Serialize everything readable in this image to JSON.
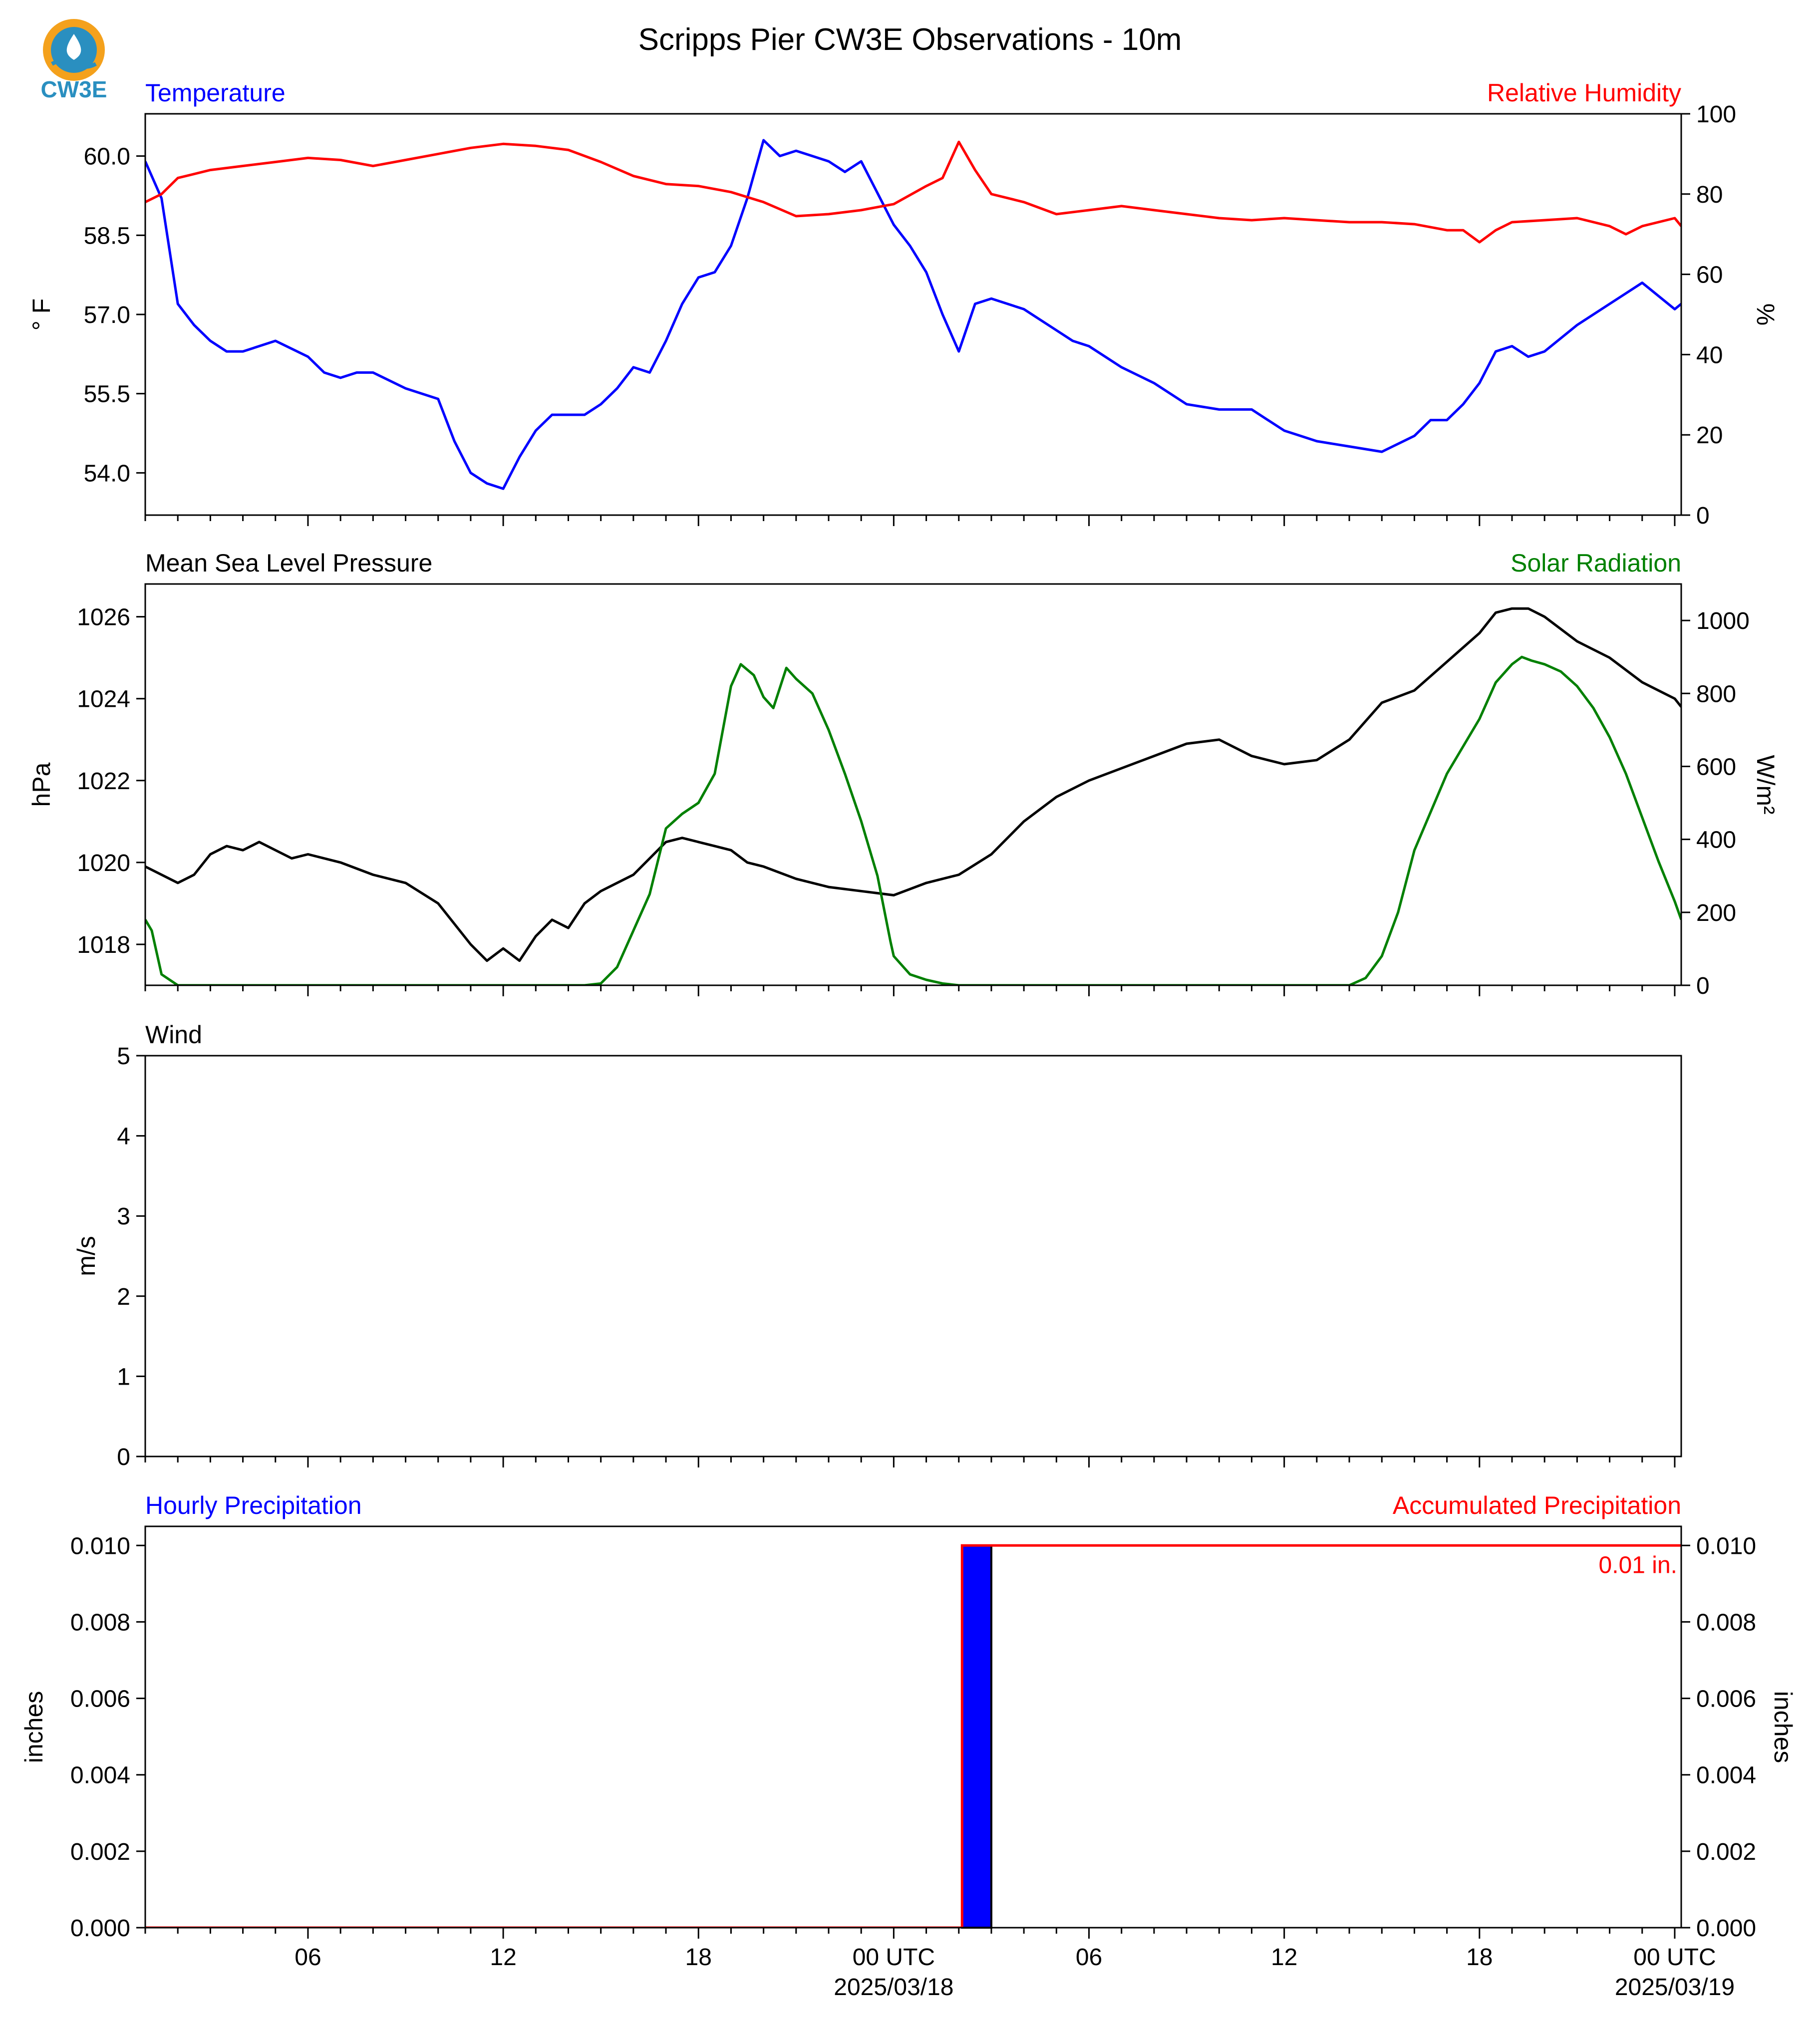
{
  "title": "Scripps Pier CW3E Observations - 10m",
  "logo": {
    "text": "CW3E",
    "color": "#2a8fc0",
    "accent": "#f4a11c"
  },
  "x_axis": {
    "range": [
      -23,
      24.2
    ],
    "ticks": [
      {
        "hour": -18,
        "label": "06"
      },
      {
        "hour": -12,
        "label": "12"
      },
      {
        "hour": -6,
        "label": "18"
      },
      {
        "hour": 0,
        "label": "00 UTC",
        "date": "2025/03/18"
      },
      {
        "hour": 6,
        "label": "06"
      },
      {
        "hour": 12,
        "label": "12"
      },
      {
        "hour": 18,
        "label": "18"
      },
      {
        "hour": 24,
        "label": "00 UTC",
        "date": "2025/03/19"
      }
    ]
  },
  "chart_data": [
    {
      "type": "line",
      "panel": "temperature-humidity",
      "left_title": "Temperature",
      "right_title": "Relative Humidity",
      "ylabel_left": "° F",
      "ylabel_right": "%",
      "ylim_left": [
        53.2,
        60.8
      ],
      "ylim_right": [
        0,
        100
      ],
      "yticks_left": [
        "54.0",
        "55.5",
        "57.0",
        "58.5",
        "60.0"
      ],
      "yticks_right": [
        "0",
        "20",
        "40",
        "60",
        "80",
        "100"
      ],
      "series": [
        {
          "name": "Temperature",
          "color": "#0000ff",
          "axis": "left",
          "x": [
            -23,
            -22.5,
            -22,
            -21.5,
            -21,
            -20.5,
            -20,
            -19,
            -18,
            -17.5,
            -17,
            -16.5,
            -16,
            -15,
            -14,
            -13.5,
            -13,
            -12.5,
            -12,
            -11.5,
            -11,
            -10.5,
            -10,
            -9.5,
            -9,
            -8.5,
            -8,
            -7.5,
            -7,
            -6.5,
            -6,
            -5.5,
            -5,
            -4.5,
            -4,
            -3.5,
            -3,
            -2.5,
            -2,
            -1.5,
            -1,
            -0.5,
            0,
            0.5,
            1,
            1.5,
            2,
            2.5,
            3,
            4,
            5,
            5.5,
            6,
            6.5,
            7,
            8,
            9,
            10,
            11,
            11.5,
            12,
            12.5,
            13,
            14,
            15,
            16,
            16.5,
            17,
            17.5,
            18,
            18.5,
            19,
            19.5,
            20,
            21,
            22,
            22.5,
            23,
            24,
            24.2
          ],
          "y": [
            59.9,
            59.2,
            57.2,
            56.8,
            56.5,
            56.3,
            56.3,
            56.5,
            56.2,
            55.9,
            55.8,
            55.9,
            55.9,
            55.6,
            55.4,
            54.6,
            54.0,
            53.8,
            53.7,
            54.3,
            54.8,
            55.1,
            55.1,
            55.1,
            55.3,
            55.6,
            56.0,
            55.9,
            56.5,
            57.2,
            57.7,
            57.8,
            58.3,
            59.2,
            60.3,
            60.0,
            60.1,
            60.0,
            59.9,
            59.7,
            59.9,
            59.3,
            58.7,
            58.3,
            57.8,
            57.0,
            56.3,
            57.2,
            57.3,
            57.1,
            56.7,
            56.5,
            56.4,
            56.2,
            56.0,
            55.7,
            55.3,
            55.2,
            55.2,
            55.0,
            54.8,
            54.7,
            54.6,
            54.5,
            54.4,
            54.7,
            55.0,
            55.0,
            55.3,
            55.7,
            56.3,
            56.4,
            56.2,
            56.3,
            56.8,
            57.2,
            57.4,
            57.6,
            57.1,
            57.2
          ]
        },
        {
          "name": "Relative Humidity",
          "color": "#ff0000",
          "axis": "right",
          "x": [
            -23,
            -22.5,
            -22,
            -21,
            -20,
            -19,
            -18,
            -17,
            -16,
            -15,
            -14,
            -13,
            -12,
            -11,
            -10,
            -9,
            -8,
            -7,
            -6,
            -5,
            -4,
            -3,
            -2,
            -1,
            0,
            1,
            1.5,
            2,
            2.5,
            3,
            3.5,
            4,
            5,
            6,
            7,
            8,
            9,
            10,
            11,
            12,
            13,
            14,
            15,
            16,
            17,
            17.5,
            18,
            18.5,
            19,
            20,
            21,
            22,
            22.5,
            23,
            24,
            24.2
          ],
          "y": [
            78,
            80,
            84,
            86,
            87,
            88,
            89,
            88.5,
            87,
            88.5,
            90,
            91.5,
            92.5,
            92,
            91,
            88,
            84.5,
            82.5,
            82,
            80.5,
            78,
            74.5,
            75,
            76,
            77.5,
            82,
            84,
            93,
            86,
            80,
            79,
            78,
            75,
            76,
            77,
            76,
            75,
            74,
            73.5,
            74,
            73.5,
            73,
            73,
            72.5,
            71,
            71,
            68,
            71,
            73,
            73.5,
            74,
            72,
            70,
            72,
            74,
            72
          ]
        }
      ]
    },
    {
      "type": "line",
      "panel": "pressure-solar",
      "left_title": "Mean Sea Level Pressure",
      "right_title": "Solar Radiation",
      "ylabel_left": "hPa",
      "ylabel_right": "W/m²",
      "ylim_left": [
        1017,
        1026.8
      ],
      "ylim_right": [
        0,
        1100
      ],
      "yticks_left": [
        "1018",
        "1020",
        "1022",
        "1024",
        "1026"
      ],
      "yticks_right": [
        "0",
        "200",
        "400",
        "600",
        "800",
        "1000"
      ],
      "series": [
        {
          "name": "Mean Sea Level Pressure",
          "color": "#000000",
          "axis": "left",
          "x": [
            -23,
            -22,
            -21.5,
            -21,
            -20.5,
            -20,
            -19.5,
            -19,
            -18.5,
            -18,
            -17,
            -16,
            -15,
            -14,
            -13,
            -12.5,
            -12,
            -11.5,
            -11,
            -10.5,
            -10,
            -9.5,
            -9,
            -8.5,
            -8,
            -7.5,
            -7,
            -6.5,
            -6,
            -5.5,
            -5,
            -4.5,
            -4,
            -3,
            -2,
            -1,
            0,
            1,
            2,
            3,
            4,
            5,
            6,
            7,
            8,
            9,
            10,
            11,
            12,
            13,
            14,
            15,
            16,
            17,
            18,
            18.5,
            19,
            19.5,
            20,
            21,
            22,
            23,
            24,
            24.2
          ],
          "y": [
            1019.9,
            1019.5,
            1019.7,
            1020.2,
            1020.4,
            1020.3,
            1020.5,
            1020.3,
            1020.1,
            1020.2,
            1020.0,
            1019.7,
            1019.5,
            1019.0,
            1018.0,
            1017.6,
            1017.9,
            1017.6,
            1018.2,
            1018.6,
            1018.4,
            1019.0,
            1019.3,
            1019.5,
            1019.7,
            1020.1,
            1020.5,
            1020.6,
            1020.5,
            1020.4,
            1020.3,
            1020.0,
            1019.9,
            1019.6,
            1019.4,
            1019.3,
            1019.2,
            1019.5,
            1019.7,
            1020.2,
            1021.0,
            1021.6,
            1022.0,
            1022.3,
            1022.6,
            1022.9,
            1023.0,
            1022.6,
            1022.4,
            1022.5,
            1023.0,
            1023.9,
            1024.2,
            1024.9,
            1025.6,
            1026.1,
            1026.2,
            1026.2,
            1026.0,
            1025.4,
            1025.0,
            1024.4,
            1024.0,
            1023.8
          ]
        },
        {
          "name": "Solar Radiation",
          "color": "#008000",
          "axis": "right",
          "x": [
            -23,
            -22.8,
            -22.5,
            -22,
            -20,
            -15,
            -13,
            -11,
            -10,
            -9.5,
            -9,
            -8.5,
            -8,
            -7.5,
            -7,
            -6.5,
            -6,
            -5.5,
            -5,
            -4.7,
            -4.3,
            -4,
            -3.7,
            -3.3,
            -3,
            -2.5,
            -2,
            -1.5,
            -1,
            -0.5,
            -0.1,
            0,
            0.2,
            0.5,
            1,
            1.5,
            2,
            3,
            10,
            14,
            14.5,
            15,
            15.5,
            16,
            17,
            18,
            18.5,
            19,
            19.3,
            19.6,
            20,
            20.5,
            21,
            21.5,
            22,
            22.5,
            23,
            23.5,
            24,
            24.2
          ],
          "y": [
            180,
            150,
            30,
            0,
            0,
            0,
            0,
            0,
            0,
            0,
            5,
            50,
            150,
            250,
            430,
            470,
            500,
            580,
            820,
            880,
            850,
            790,
            760,
            870,
            840,
            800,
            700,
            580,
            450,
            300,
            120,
            80,
            60,
            30,
            15,
            5,
            0,
            0,
            0,
            0,
            20,
            80,
            200,
            370,
            580,
            730,
            830,
            880,
            900,
            890,
            880,
            860,
            820,
            760,
            680,
            580,
            460,
            340,
            230,
            180
          ]
        }
      ]
    },
    {
      "type": "line",
      "panel": "wind",
      "left_title": "Wind",
      "ylabel_left": "m/s",
      "ylim_left": [
        0,
        5
      ],
      "yticks_left": [
        "0",
        "1",
        "2",
        "3",
        "4",
        "5"
      ],
      "series": []
    },
    {
      "type": "bar",
      "panel": "precipitation",
      "left_title": "Hourly Precipitation",
      "right_title": "Accumulated Precipitation",
      "ylabel_left": "inches",
      "ylabel_right": "inches",
      "ylim_left": [
        0,
        0.0105
      ],
      "ylim_right": [
        0,
        0.0105
      ],
      "yticks_left": [
        "0.000",
        "0.002",
        "0.004",
        "0.006",
        "0.008",
        "0.010"
      ],
      "yticks_right": [
        "0.000",
        "0.002",
        "0.004",
        "0.006",
        "0.008",
        "0.010"
      ],
      "bars": [
        {
          "start": 2.1,
          "end": 3.0,
          "value": 0.01,
          "color": "#0000ff"
        }
      ],
      "accumulated": {
        "color": "#ff0000",
        "x": [
          -23,
          2.1,
          2.1,
          24.2
        ],
        "y": [
          0,
          0,
          0.01,
          0.01
        ],
        "annotation": "0.01 in."
      }
    }
  ]
}
